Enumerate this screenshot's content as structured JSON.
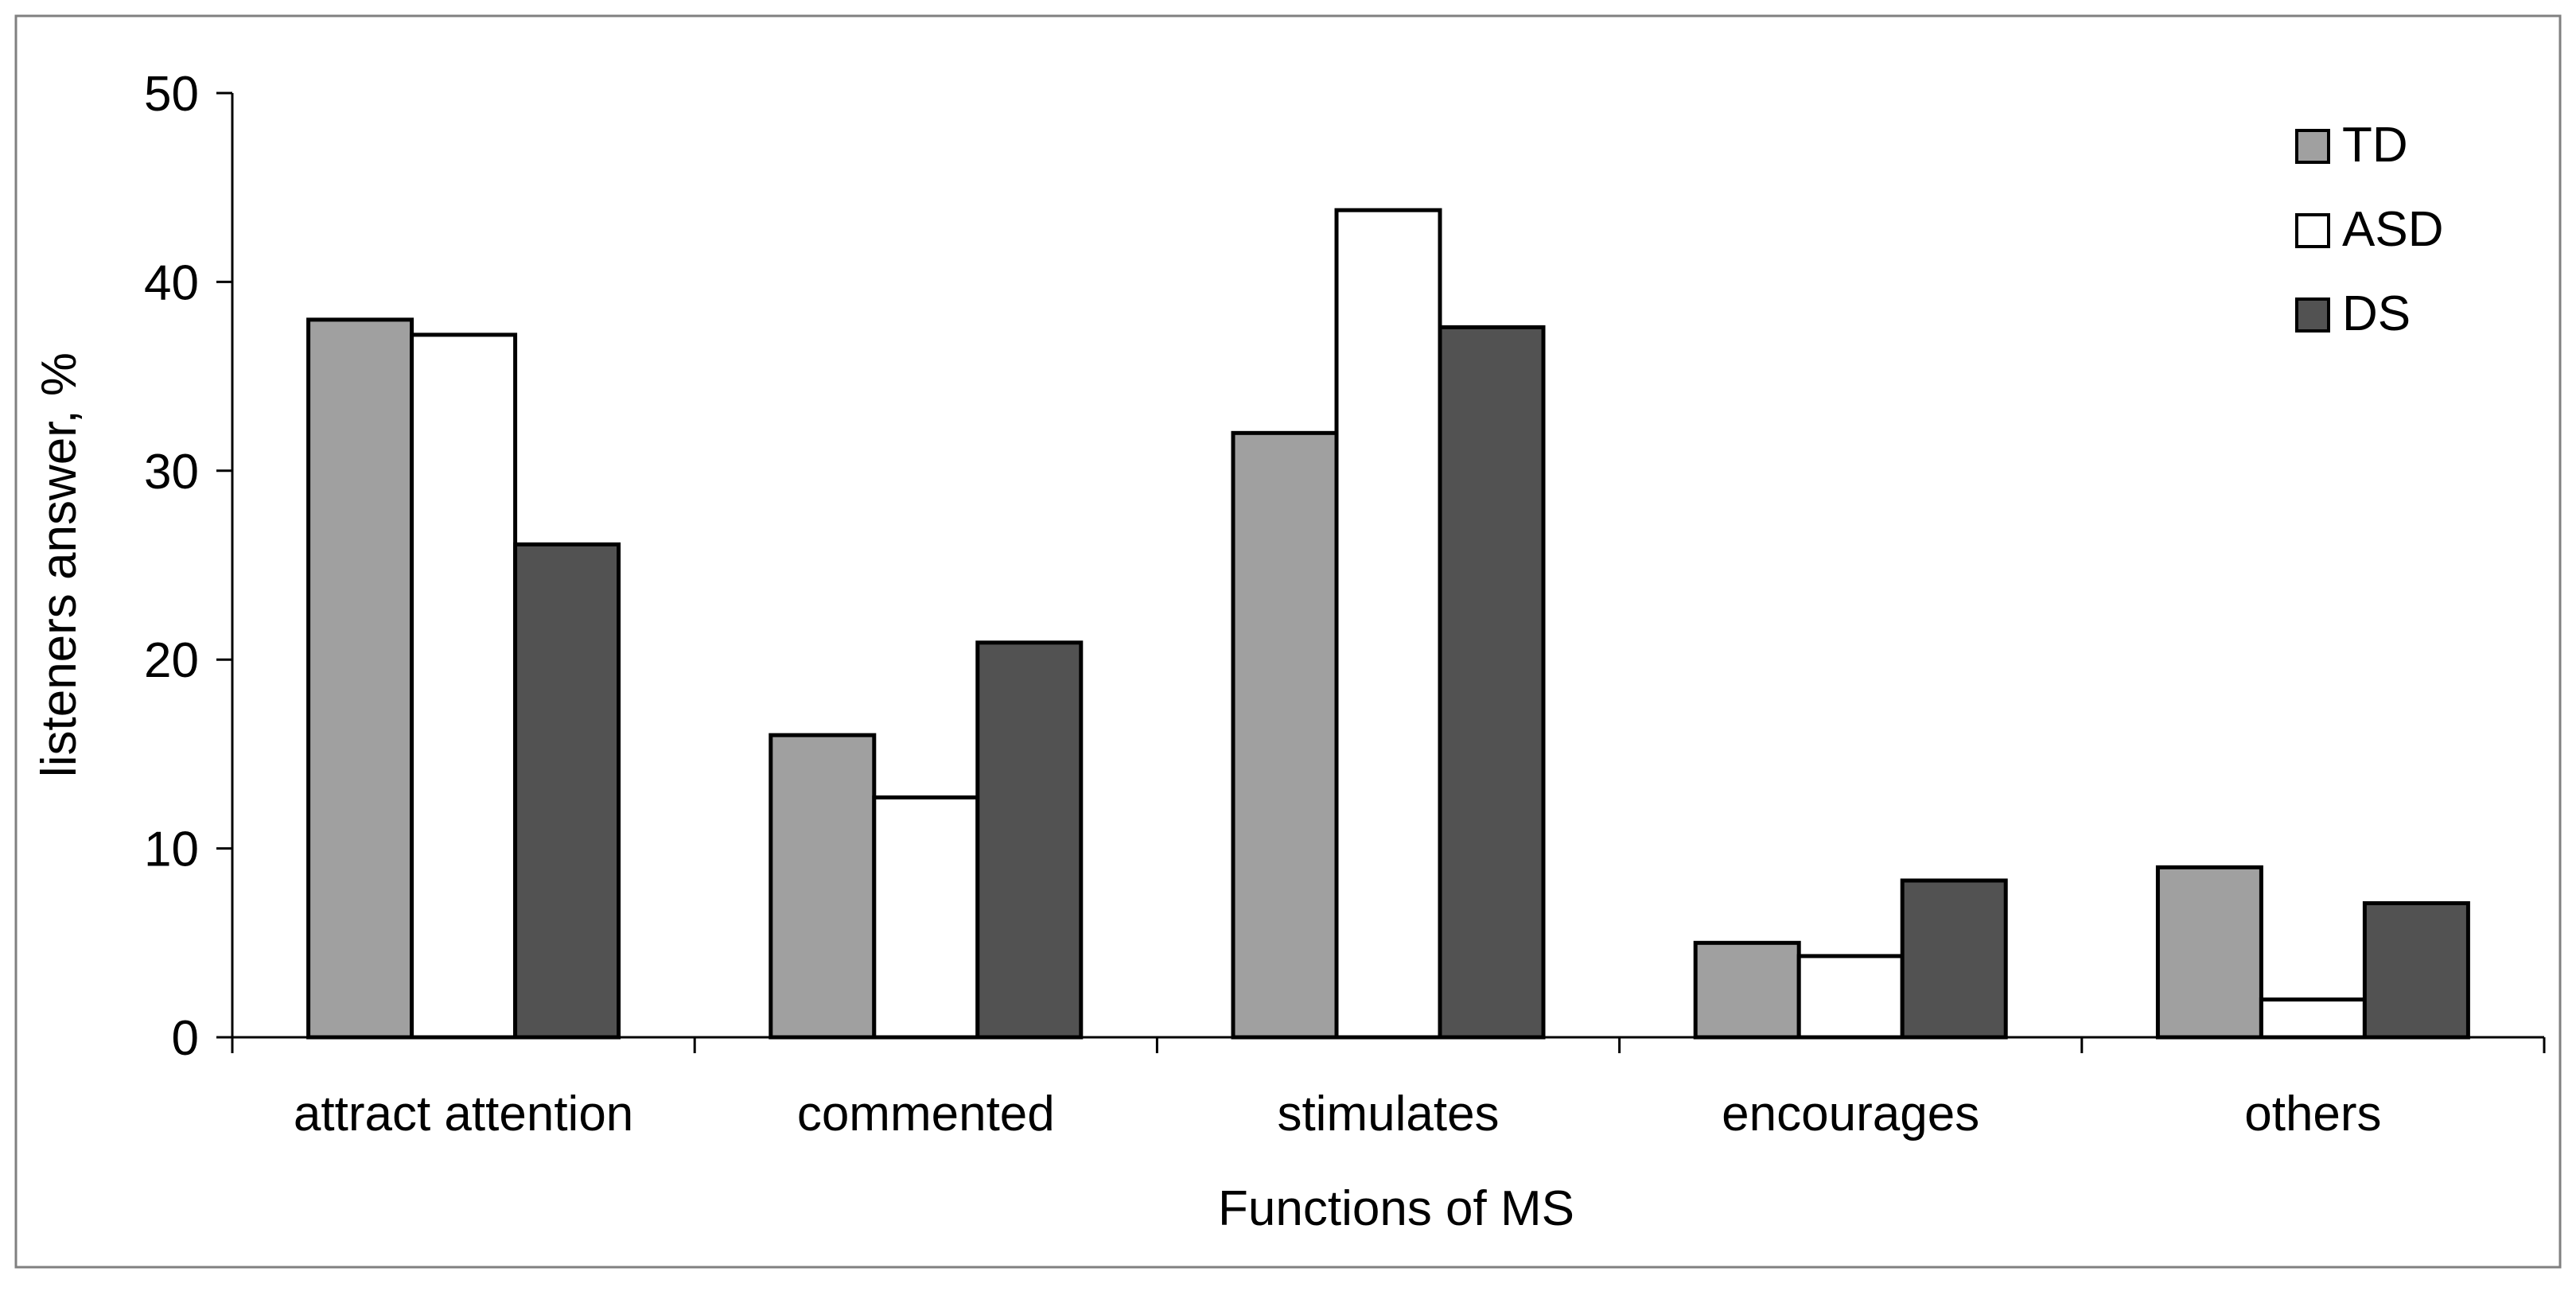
{
  "chart_data": {
    "type": "bar",
    "title": "",
    "xlabel": "Functions of MS",
    "ylabel": "listeners answer, %",
    "ylim": [
      0,
      50
    ],
    "yticks": [
      0,
      10,
      20,
      30,
      40,
      50
    ],
    "categories": [
      "attract attention",
      "commented",
      "stimulates",
      "encourages",
      "others"
    ],
    "series": [
      {
        "name": "TD",
        "color": "#a0a0a0",
        "values": [
          38,
          16,
          32,
          5,
          9
        ]
      },
      {
        "name": "ASD",
        "color": "#ffffff",
        "values": [
          37.2,
          12.7,
          43.8,
          4.3,
          2
        ]
      },
      {
        "name": "DS",
        "color": "#525252",
        "values": [
          26.1,
          20.9,
          37.6,
          8.3,
          7.1
        ]
      }
    ],
    "legend_position": "top-right",
    "grid": false
  }
}
